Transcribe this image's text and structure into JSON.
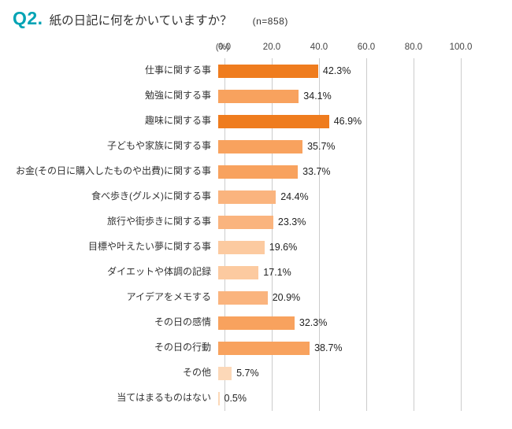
{
  "header": {
    "q_label": "Q2.",
    "title": "紙の日記に何をかいていますか？",
    "sample": "(n=858)"
  },
  "colors": {
    "accent_teal": "#00a3b4",
    "grid": "#cccccc",
    "bar_dark": "#ef7c1e",
    "bar_mid": "#f8a25e",
    "bar_light": "#fab47e",
    "bar_lighter": "#fccaa0",
    "bar_lightest": "#fcd8b8"
  },
  "chart_data": {
    "type": "bar",
    "orientation": "horizontal",
    "title": "紙の日記に何をかいていますか？",
    "sample_size": 858,
    "unit_label": "(%)",
    "xlim": [
      0,
      100
    ],
    "grid": true,
    "axis_ticks": [
      "0.0",
      "20.0",
      "40.0",
      "60.0",
      "80.0",
      "100.0"
    ],
    "categories": [
      "仕事に関する事",
      "勉強に関する事",
      "趣味に関する事",
      "子どもや家族に関する事",
      "お金(その日に購入したものや出費)に関する事",
      "食べ歩き(グルメ)に関する事",
      "旅行や街歩きに関する事",
      "目標や叶えたい夢に関する事",
      "ダイエットや体調の記録",
      "アイデアをメモする",
      "その日の感情",
      "その日の行動",
      "その他",
      "当てはまるものはない"
    ],
    "values": [
      42.3,
      34.1,
      46.9,
      35.7,
      33.7,
      24.4,
      23.3,
      19.6,
      17.1,
      20.9,
      32.3,
      38.7,
      5.7,
      0.5
    ],
    "value_labels": [
      "42.3%",
      "34.1%",
      "46.9%",
      "35.7%",
      "33.7%",
      "24.4%",
      "23.3%",
      "19.6%",
      "17.1%",
      "20.9%",
      "32.3%",
      "38.7%",
      "5.7%",
      "0.5%"
    ],
    "bar_colors": [
      "#ef7c1e",
      "#f8a25e",
      "#ef7c1e",
      "#f8a25e",
      "#f8a25e",
      "#fab47e",
      "#fab47e",
      "#fccaa0",
      "#fccaa0",
      "#fab47e",
      "#f8a25e",
      "#f8a25e",
      "#fcd8b8",
      "#fcd8b8"
    ]
  }
}
